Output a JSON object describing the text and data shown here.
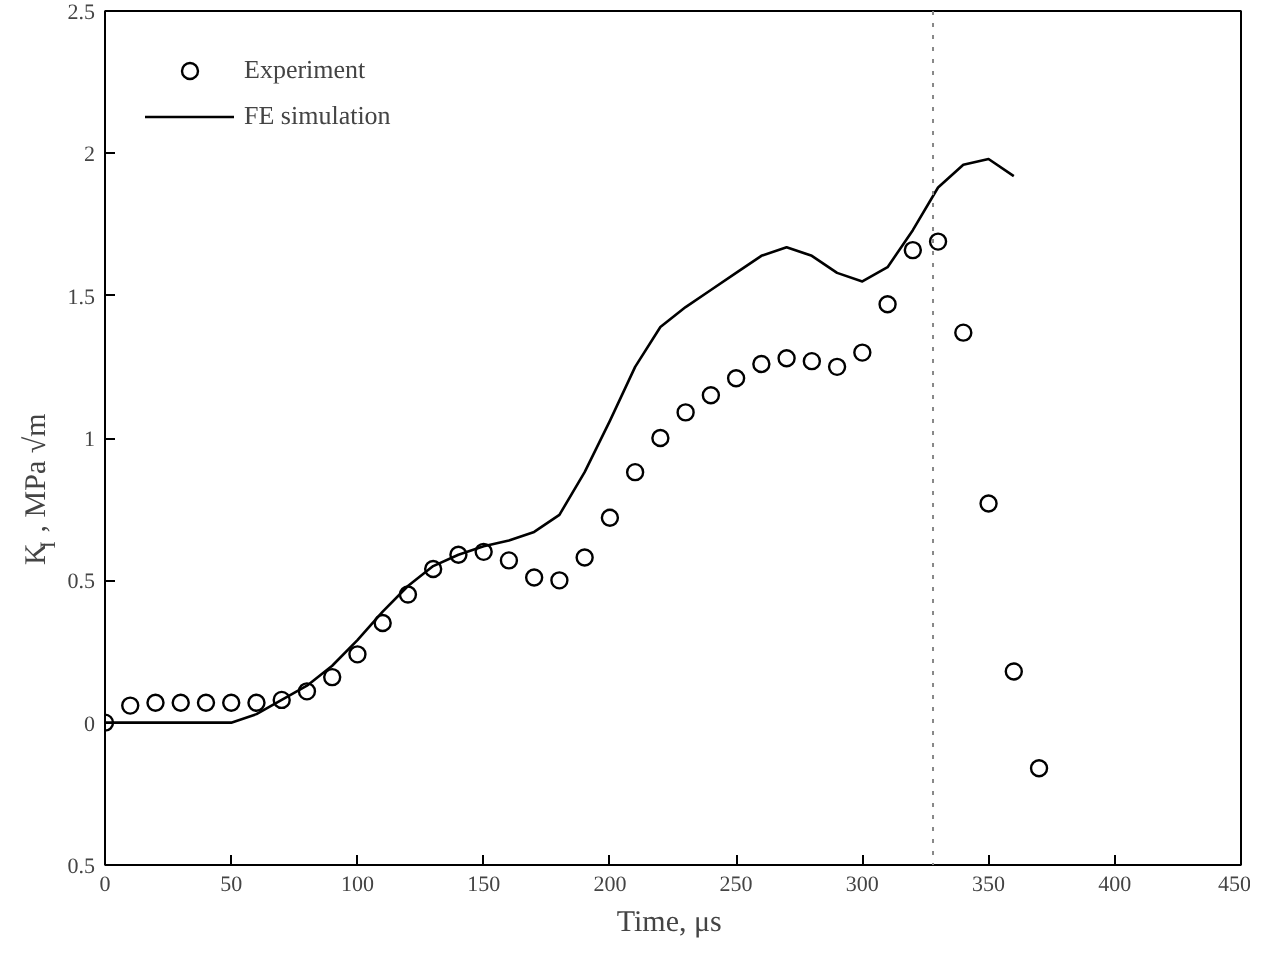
{
  "chart_data": {
    "type": "line",
    "xlabel": "Time,  μs",
    "ylabel": "K$_{I}$ ,  MPa √m",
    "xlim": [
      0,
      450
    ],
    "xticks": [
      0,
      50,
      100,
      150,
      200,
      250,
      300,
      350,
      400,
      450
    ],
    "ylim": [
      -0.5,
      2.5
    ],
    "yticks": [
      {
        "value": -0.5,
        "label": "0.5"
      },
      0,
      0.5,
      1,
      1.5,
      2,
      2.5
    ],
    "grid": false,
    "legend": "top left",
    "series": [
      {
        "name": "Experiment",
        "type": "scatter",
        "marker": "circle",
        "color": "#000000",
        "x": [
          0,
          10,
          20,
          30,
          40,
          50,
          60,
          70,
          80,
          90,
          100,
          110,
          120,
          130,
          140,
          150,
          160,
          170,
          180,
          190,
          200,
          210,
          220,
          230,
          240,
          250,
          260,
          270,
          280,
          290,
          300,
          310,
          320,
          330,
          340,
          350,
          360,
          370
        ],
        "values": [
          0,
          0.06,
          0.07,
          0.07,
          0.07,
          0.07,
          0.07,
          0.08,
          0.11,
          0.16,
          0.24,
          0.35,
          0.45,
          0.54,
          0.59,
          0.6,
          0.57,
          0.51,
          0.5,
          0.58,
          0.72,
          0.88,
          1.0,
          1.09,
          1.15,
          1.21,
          1.26,
          1.28,
          1.27,
          1.25,
          1.3,
          1.47,
          1.66,
          1.69,
          1.37,
          0.77,
          0.18,
          -0.16
        ]
      },
      {
        "name": "FE simulation",
        "line_style": "solid",
        "color": "#000000",
        "x": [
          0,
          50,
          60,
          70,
          80,
          90,
          100,
          110,
          120,
          130,
          140,
          150,
          160,
          170,
          180,
          190,
          200,
          210,
          220,
          230,
          240,
          250,
          260,
          270,
          280,
          290,
          300,
          310,
          320,
          330,
          340,
          350,
          360
        ],
        "values": [
          0,
          0,
          0.03,
          0.08,
          0.13,
          0.2,
          0.29,
          0.39,
          0.48,
          0.55,
          0.59,
          0.62,
          0.64,
          0.67,
          0.73,
          0.88,
          1.06,
          1.25,
          1.39,
          1.46,
          1.52,
          1.58,
          1.64,
          1.67,
          1.64,
          1.58,
          1.55,
          1.6,
          1.73,
          1.88,
          1.96,
          1.98,
          1.92
        ]
      }
    ],
    "ref_lines": [
      {
        "axis": "x",
        "value": 328,
        "label": null,
        "color": "#888888",
        "line_style": "dotted"
      }
    ]
  }
}
